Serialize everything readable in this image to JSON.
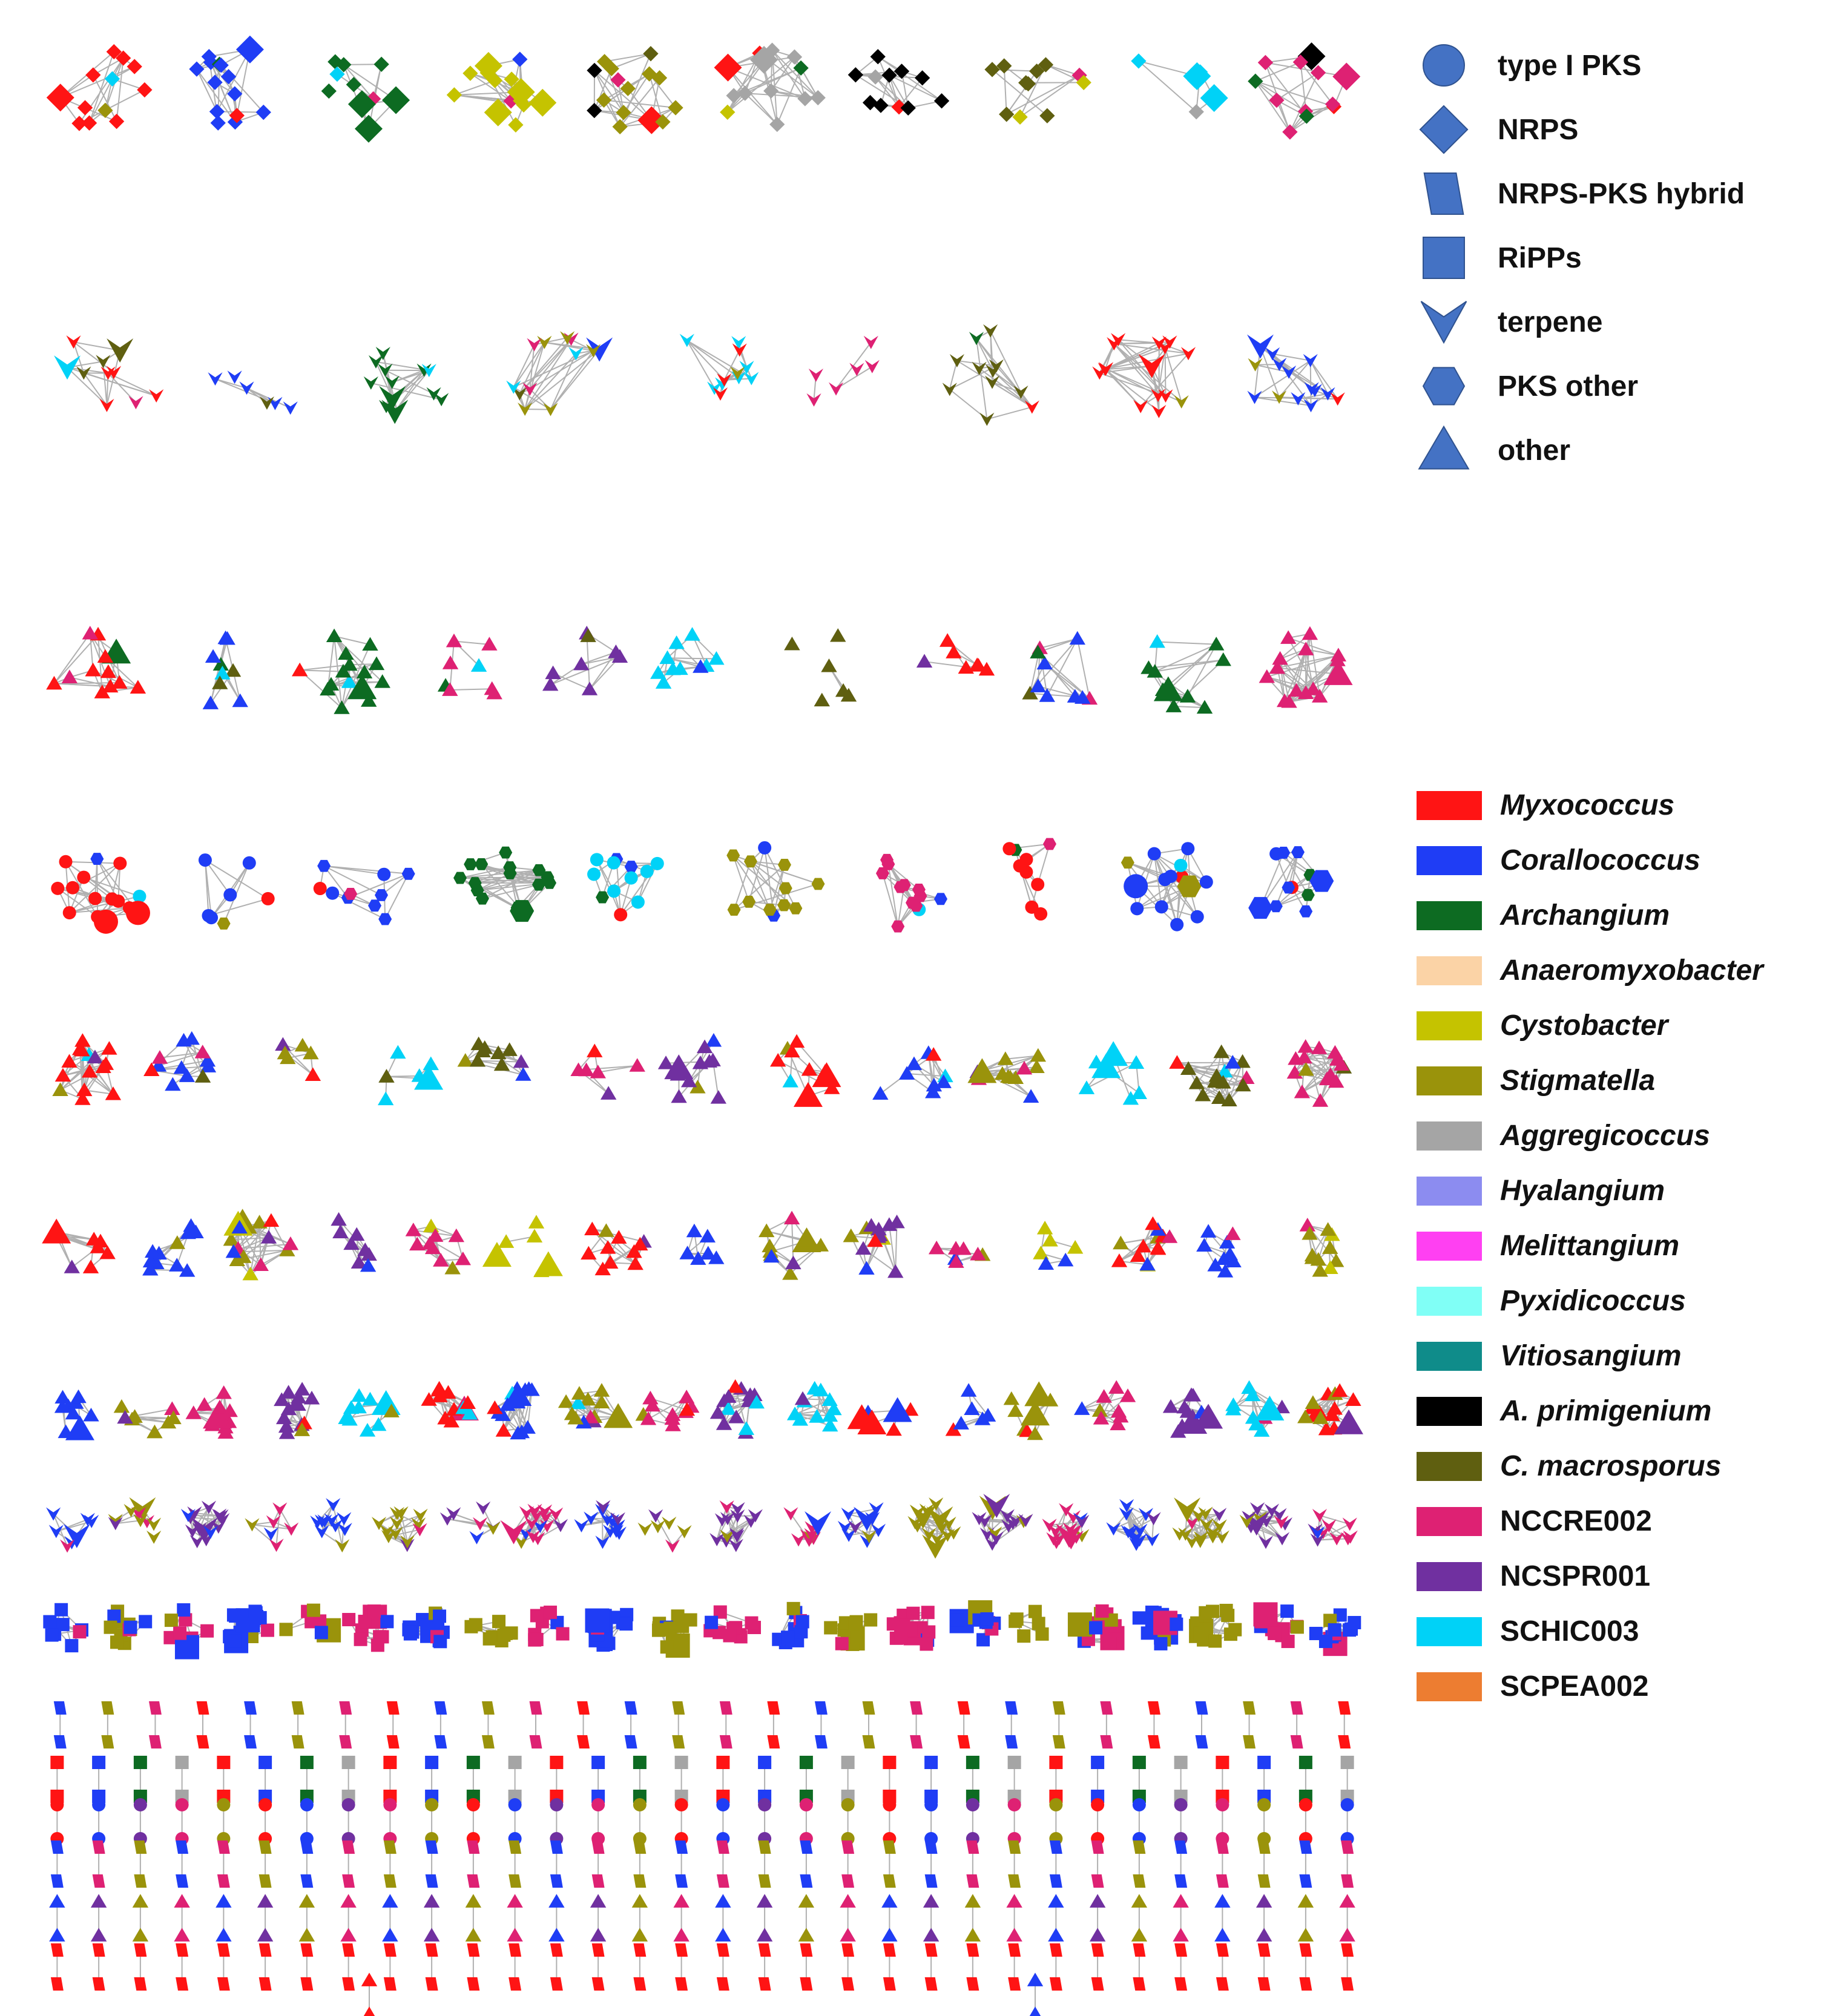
{
  "figure": {
    "description_free": true,
    "edge_color": "#b0b0b0",
    "shape_fill_legend": "#4472c4"
  },
  "legend_shapes": [
    {
      "shape": "circle",
      "label": "type I PKS"
    },
    {
      "shape": "diamond",
      "label": "NRPS"
    },
    {
      "shape": "parallelogram",
      "label": "NRPS-PKS hybrid"
    },
    {
      "shape": "square",
      "label": "RiPPs"
    },
    {
      "shape": "v",
      "label": "terpene"
    },
    {
      "shape": "hexagon",
      "label": "PKS other"
    },
    {
      "shape": "triangle",
      "label": "other"
    }
  ],
  "legend_genera": [
    {
      "label": "Myxococcus",
      "color": "#ff1414",
      "italic": true
    },
    {
      "label": "Corallococcus",
      "color": "#1f3df5",
      "italic": true
    },
    {
      "label": "Archangium",
      "color": "#0d6b22",
      "italic": true
    },
    {
      "label": "Anaeromyxobacter",
      "color": "#fbd3a6",
      "italic": true
    },
    {
      "label": "Cystobacter",
      "color": "#c5c300",
      "italic": true
    },
    {
      "label": "Stigmatella",
      "color": "#9a930b",
      "italic": true
    },
    {
      "label": "Aggregicoccus",
      "color": "#a5a5a5",
      "italic": true
    },
    {
      "label": "Hyalangium",
      "color": "#8c8cf0",
      "italic": true
    },
    {
      "label": "Melittangium",
      "color": "#ff40f2",
      "italic": true
    },
    {
      "label": "Pyxidicoccus",
      "color": "#80fff6",
      "italic": true
    },
    {
      "label": "Vitiosangium",
      "color": "#0f8c8a",
      "italic": true
    },
    {
      "label": "A. primigenium",
      "color": "#000000",
      "italic": true
    },
    {
      "label": "C. macrosporus",
      "color": "#5f5f10",
      "italic": true
    },
    {
      "label": "NCCRE002",
      "color": "#de2173",
      "italic": false
    },
    {
      "label": "NCSPR001",
      "color": "#7030a0",
      "italic": false
    },
    {
      "label": "SCHIC003",
      "color": "#00d2f7",
      "italic": false
    },
    {
      "label": "SCPEA002",
      "color": "#ed7d31",
      "italic": false
    }
  ],
  "network_rows": [
    "M:d,C:d,A:d,Y:d,S:d,G:d,X:d,O:d,P:d,N:d",
    "M:v,C:v,A:v,S:v,P:v,N:v,O:v",
    "M:t,C:t,A:t,N:t,R:t,P:t,O:t",
    "M:c,C:c,C:h,A:h,P:c,S:h,N:h",
    "M:t,C:t,S:t,P:t,O:t,N:t,R:t",
    "M:t,C:t,S:t,R:t,N:t,Y:t",
    "C:t,S:t,N:t,R:t,P:t,M:t",
    "C:v,S:v,R:v,N:v",
    "C:s,S:s,N:s",
    "C:p,S:p,N:p,M:p",
    "M:s,C:s,A:s,G:s",
    "M:c,C:c,R:c,N:c,S:c",
    "C:p,N:p,S:p",
    "C:t,R:t,S:t,N:t",
    "M:p",
    "M:t,C:t,S:t,R:t"
  ]
}
